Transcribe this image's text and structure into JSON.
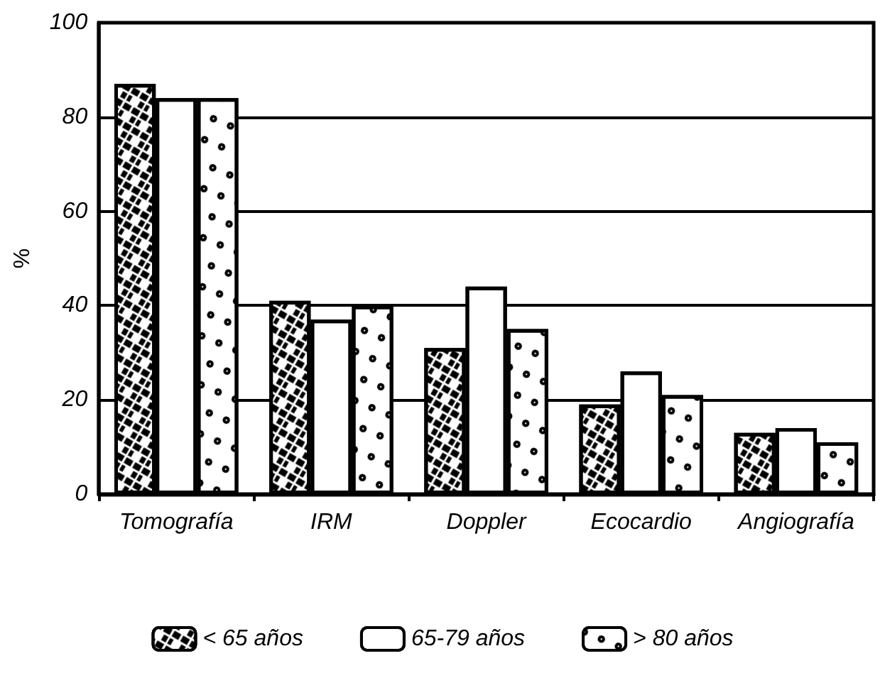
{
  "chart_data": {
    "type": "bar",
    "ylabel": "%",
    "categories": [
      "Tomografía",
      "IRM",
      "Doppler",
      "Ecocardio",
      "Angiografía"
    ],
    "series": [
      {
        "name": "< 65 años",
        "color": "#ffffff",
        "values": [
          87,
          41,
          31,
          19,
          13
        ]
      },
      {
        "name": "65-79 años",
        "color": "#ffffff",
        "values": [
          84,
          37,
          44,
          26,
          14
        ]
      },
      {
        "name": "> 80 años",
        "color": "#ffffff",
        "values": [
          84,
          40,
          35,
          21,
          11
        ]
      }
    ],
    "ylim": [
      0,
      100
    ],
    "yticks": [
      0,
      20,
      40,
      60,
      80,
      100
    ],
    "grid": "y",
    "legend": "bottom"
  }
}
